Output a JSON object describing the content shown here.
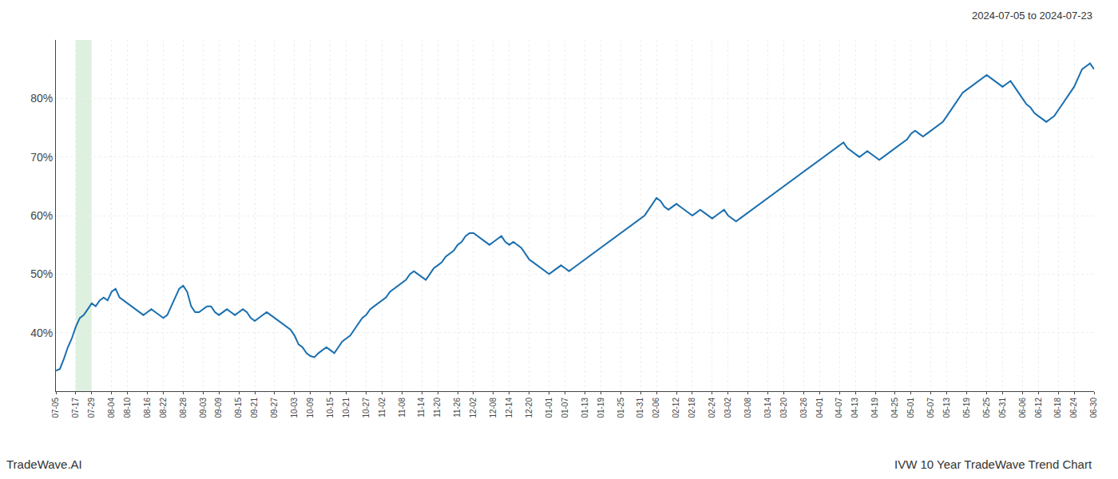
{
  "chart_data": {
    "type": "line",
    "categories": [
      "07-05",
      null,
      null,
      null,
      null,
      "07-17",
      null,
      null,
      null,
      "07-29",
      null,
      null,
      null,
      null,
      "08-04",
      null,
      null,
      null,
      "08-10",
      null,
      null,
      null,
      null,
      "08-16",
      null,
      null,
      null,
      "08-22",
      null,
      null,
      null,
      null,
      "08-28",
      null,
      null,
      null,
      null,
      "09-03",
      null,
      null,
      null,
      "09-09",
      null,
      null,
      null,
      null,
      "09-15",
      null,
      null,
      null,
      "09-21",
      null,
      null,
      null,
      null,
      "09-27",
      null,
      null,
      null,
      null,
      "10-03",
      null,
      null,
      null,
      "10-09",
      null,
      null,
      null,
      null,
      "10-15",
      null,
      null,
      null,
      "10-21",
      null,
      null,
      null,
      null,
      "10-27",
      null,
      null,
      null,
      "11-02",
      null,
      null,
      null,
      null,
      "11-08",
      null,
      null,
      null,
      null,
      "11-14",
      null,
      null,
      null,
      "11-20",
      null,
      null,
      null,
      null,
      "11-26",
      null,
      null,
      null,
      "12-02",
      null,
      null,
      null,
      null,
      "12-08",
      null,
      null,
      null,
      "12-14",
      null,
      null,
      null,
      null,
      "12-20",
      null,
      null,
      null,
      null,
      "01-01",
      null,
      null,
      null,
      "01-07",
      null,
      null,
      null,
      null,
      "01-13",
      null,
      null,
      null,
      "01-19",
      null,
      null,
      null,
      null,
      "01-25",
      null,
      null,
      null,
      null,
      "01-31",
      null,
      null,
      null,
      "02-06",
      null,
      null,
      null,
      null,
      "02-12",
      null,
      null,
      null,
      "02-18",
      null,
      null,
      null,
      null,
      "02-24",
      null,
      null,
      null,
      "03-02",
      null,
      null,
      null,
      null,
      "03-08",
      null,
      null,
      null,
      null,
      "03-14",
      null,
      null,
      null,
      "03-20",
      null,
      null,
      null,
      null,
      "03-26",
      null,
      null,
      null,
      "04-01",
      null,
      null,
      null,
      null,
      "04-07",
      null,
      null,
      null,
      "04-13",
      null,
      null,
      null,
      null,
      "04-19",
      null,
      null,
      null,
      null,
      "04-25",
      null,
      null,
      null,
      "05-01",
      null,
      null,
      null,
      null,
      "05-07",
      null,
      null,
      null,
      "05-13",
      null,
      null,
      null,
      null,
      "05-19",
      null,
      null,
      null,
      null,
      "05-25",
      null,
      null,
      null,
      "05-31",
      null,
      null,
      null,
      null,
      "06-06",
      null,
      null,
      null,
      "06-12",
      null,
      null,
      null,
      null,
      "06-18",
      null,
      null,
      null,
      "06-24",
      null,
      null,
      null,
      null,
      "06-30"
    ],
    "values": [
      33.5,
      33.8,
      35.5,
      37.5,
      39.0,
      41.0,
      42.5,
      43.0,
      44.0,
      45.0,
      44.5,
      45.5,
      46.0,
      45.5,
      47.0,
      47.5,
      46.0,
      45.5,
      45.0,
      44.5,
      44.0,
      43.5,
      43.0,
      43.5,
      44.0,
      43.5,
      43.0,
      42.5,
      43.0,
      44.5,
      46.0,
      47.5,
      48.0,
      47.0,
      44.5,
      43.5,
      43.5,
      44.0,
      44.5,
      44.5,
      43.5,
      43.0,
      43.5,
      44.0,
      43.5,
      43.0,
      43.5,
      44.0,
      43.5,
      42.5,
      42.0,
      42.5,
      43.0,
      43.5,
      43.0,
      42.5,
      42.0,
      41.5,
      41.0,
      40.5,
      39.5,
      38.0,
      37.5,
      36.5,
      36.0,
      35.8,
      36.5,
      37.0,
      37.5,
      37.0,
      36.5,
      37.5,
      38.5,
      39.0,
      39.5,
      40.5,
      41.5,
      42.5,
      43.0,
      44.0,
      44.5,
      45.0,
      45.5,
      46.0,
      47.0,
      47.5,
      48.0,
      48.5,
      49.0,
      50.0,
      50.5,
      50.0,
      49.5,
      49.0,
      50.0,
      51.0,
      51.5,
      52.0,
      53.0,
      53.5,
      54.0,
      55.0,
      55.5,
      56.5,
      57.0,
      57.0,
      56.5,
      56.0,
      55.5,
      55.0,
      55.5,
      56.0,
      56.5,
      55.5,
      55.0,
      55.5,
      55.0,
      54.5,
      53.5,
      52.5,
      52.0,
      51.5,
      51.0,
      50.5,
      50.0,
      50.5,
      51.0,
      51.5,
      51.0,
      50.5,
      51.0,
      51.5,
      52.0,
      52.5,
      53.0,
      53.5,
      54.0,
      54.5,
      55.0,
      55.5,
      56.0,
      56.5,
      57.0,
      57.5,
      58.0,
      58.5,
      59.0,
      59.5,
      60.0,
      61.0,
      62.0,
      63.0,
      62.5,
      61.5,
      61.0,
      61.5,
      62.0,
      61.5,
      61.0,
      60.5,
      60.0,
      60.5,
      61.0,
      60.5,
      60.0,
      59.5,
      60.0,
      60.5,
      61.0,
      60.0,
      59.5,
      59.0,
      59.5,
      60.0,
      60.5,
      61.0,
      61.5,
      62.0,
      62.5,
      63.0,
      63.5,
      64.0,
      64.5,
      65.0,
      65.5,
      66.0,
      66.5,
      67.0,
      67.5,
      68.0,
      68.5,
      69.0,
      69.5,
      70.0,
      70.5,
      71.0,
      71.5,
      72.0,
      72.5,
      71.5,
      71.0,
      70.5,
      70.0,
      70.5,
      71.0,
      70.5,
      70.0,
      69.5,
      70.0,
      70.5,
      71.0,
      71.5,
      72.0,
      72.5,
      73.0,
      74.0,
      74.5,
      74.0,
      73.5,
      74.0,
      74.5,
      75.0,
      75.5,
      76.0,
      77.0,
      78.0,
      79.0,
      80.0,
      81.0,
      81.5,
      82.0,
      82.5,
      83.0,
      83.5,
      84.0,
      83.5,
      83.0,
      82.5,
      82.0,
      82.5,
      83.0,
      82.0,
      81.0,
      80.0,
      79.0,
      78.5,
      77.5,
      77.0,
      76.5,
      76.0,
      76.5,
      77.0,
      78.0,
      79.0,
      80.0,
      81.0,
      82.0,
      83.5,
      85.0,
      85.5,
      86.0,
      85.0
    ],
    "color": "#1a6faf",
    "ylim": [
      30,
      90
    ],
    "yticks": [
      {
        "value": 40,
        "label": "40%"
      },
      {
        "value": 50,
        "label": "50%"
      },
      {
        "value": 60,
        "label": "60%"
      },
      {
        "value": 70,
        "label": "70%"
      },
      {
        "value": 80,
        "label": "80%"
      }
    ],
    "grid": true,
    "annotations": [
      "2024-07-05 to 2024-07-23",
      "TradeWave.AI",
      "IVW 10 Year TradeWave Trend Chart"
    ],
    "highlight": {
      "start": "07-17",
      "end": "07-29",
      "color": "#c8e6c9"
    }
  }
}
